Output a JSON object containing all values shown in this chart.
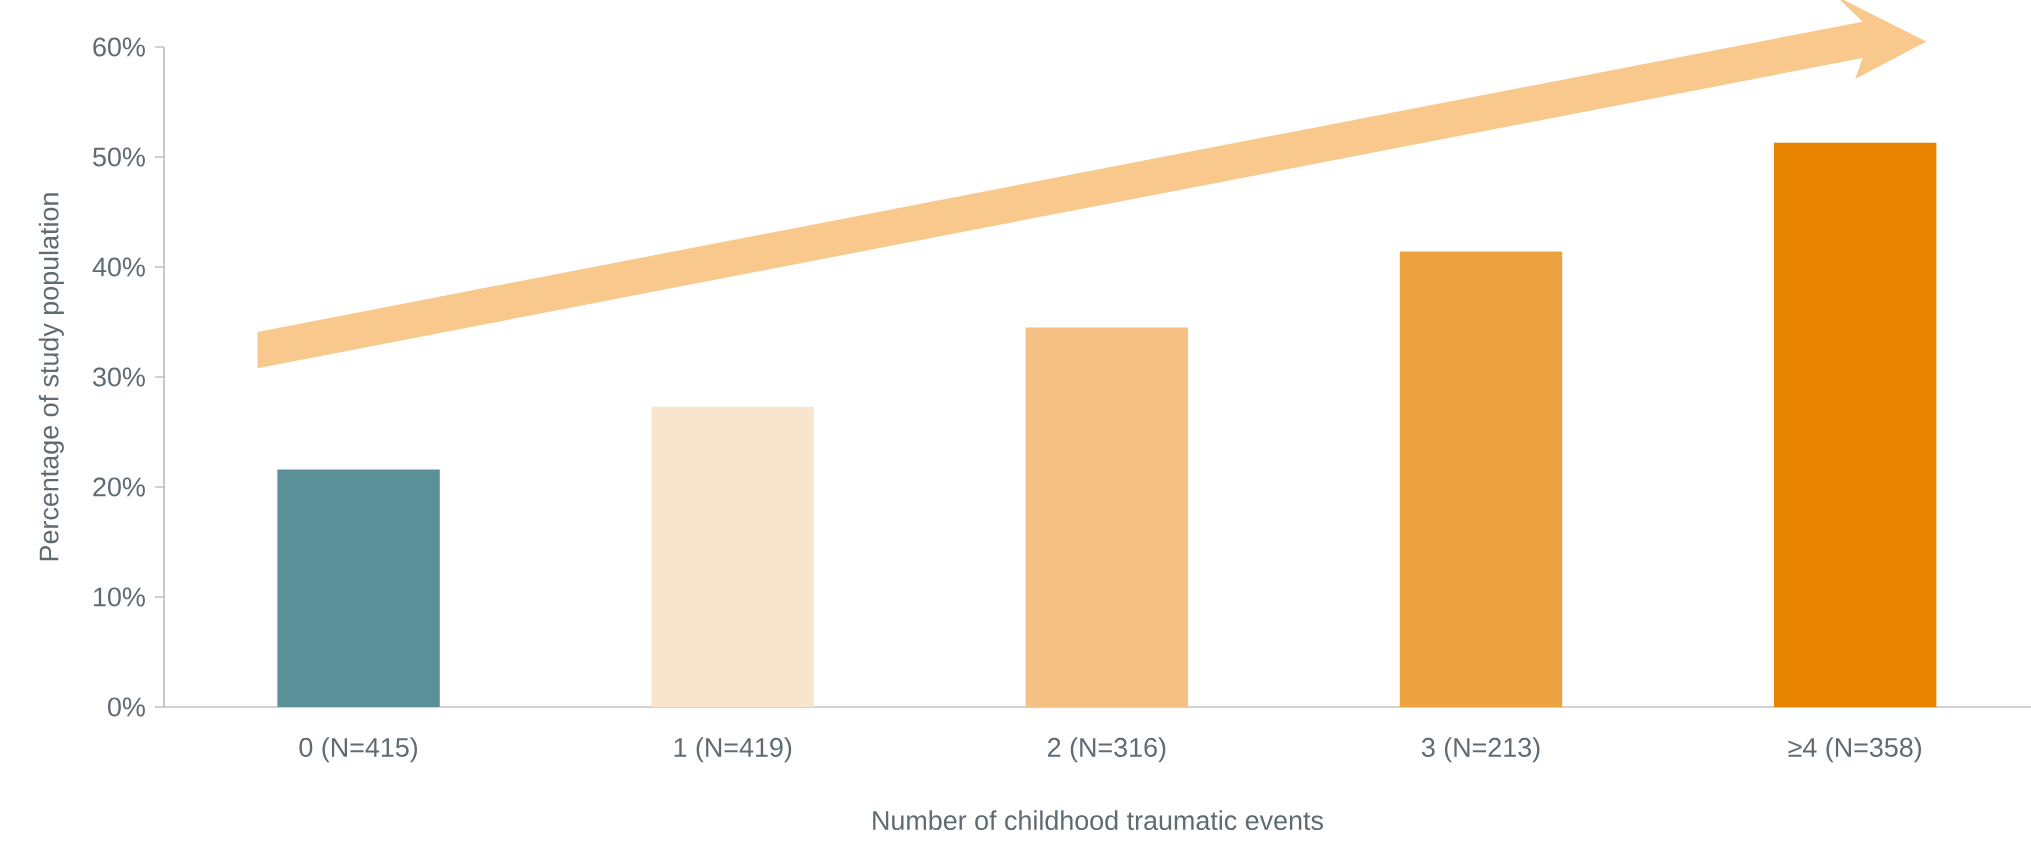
{
  "chart_data": {
    "type": "bar",
    "xlabel": "Number of childhood traumatic events",
    "ylabel": "Percentage of study population",
    "categories": [
      "0 (N=415)",
      "1 (N=419)",
      "2 (N=316)",
      "3 (N=213)",
      "≥4 (N=358)"
    ],
    "values": [
      21.6,
      27.3,
      34.5,
      41.4,
      51.3
    ],
    "colors": [
      "#5a9199",
      "#f9e5cd",
      "#f4c083",
      "#eda242",
      "#e88300"
    ],
    "ylim": [
      0,
      60
    ],
    "yticks": [
      {
        "value": 0,
        "label": "0%"
      },
      {
        "value": 10,
        "label": "10%"
      },
      {
        "value": 20,
        "label": "20%"
      },
      {
        "value": 30,
        "label": "30%"
      },
      {
        "value": 40,
        "label": "40%"
      },
      {
        "value": 50,
        "label": "50%"
      },
      {
        "value": 60,
        "label": "60%"
      }
    ],
    "grid": false
  }
}
